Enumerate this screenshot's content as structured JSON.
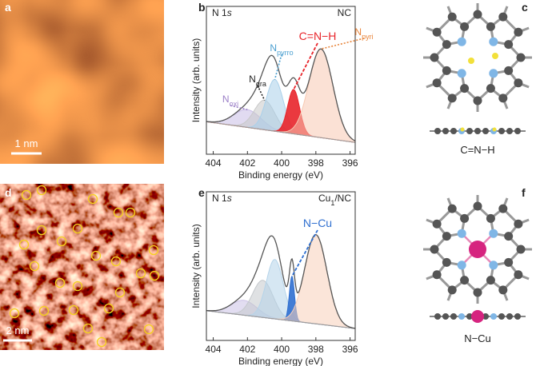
{
  "panels": {
    "a": {
      "letter": "a",
      "scale_bar": "1 nm"
    },
    "c": {
      "letter": "c",
      "caption": "C=N−H"
    },
    "d": {
      "letter": "d",
      "scale_bar": "2 nm"
    },
    "f": {
      "letter": "f",
      "caption": "N−Cu"
    }
  },
  "chart_data": [
    {
      "type": "area",
      "letter": "b",
      "core_level": "N 1",
      "core_level_italic": "s",
      "sample": "NC",
      "xlabel": "Binding energy (eV)",
      "ylabel": "Intensity (arb. units)",
      "xlim": [
        404.4,
        395.7
      ],
      "xticks": [
        404,
        402,
        400,
        398,
        396
      ],
      "ylim": [
        0,
        1
      ],
      "background": [
        0.22,
        0.08
      ],
      "series": [
        {
          "name": "N",
          "name_sub": "oxi",
          "color": "#c9bde6",
          "label_color": "#9b7fc7",
          "center": 402,
          "height": 0.12,
          "sigma": 0.8
        },
        {
          "name": "N",
          "name_sub": "gra",
          "color": "#c8c8c8",
          "label_color": "#222222",
          "center": 401,
          "height": 0.2,
          "sigma": 0.6
        },
        {
          "name": "N",
          "name_sub": "pyrro",
          "color": "#a9d0ea",
          "label_color": "#4a9fd0",
          "center": 400.4,
          "height": 0.35,
          "sigma": 0.5
        },
        {
          "name": "C=N−H",
          "color": "#e8242a",
          "label_color": "#e8242a",
          "center": 399.3,
          "height": 0.3,
          "sigma": 0.35
        },
        {
          "name": "N",
          "name_sub": "pyri",
          "color": "#f7c9b2",
          "label_color": "#e8843a",
          "center": 397.7,
          "height": 0.6,
          "sigma": 0.7
        }
      ]
    },
    {
      "type": "area",
      "letter": "e",
      "core_level": "N 1",
      "core_level_italic": "s",
      "sample": "Cu",
      "sample_sub": "1",
      "sample_rest": "/NC",
      "xlabel": "Binding energy (eV)",
      "ylabel": "Intensity (arb. units)",
      "xlim": [
        404.4,
        395.7
      ],
      "xticks": [
        404,
        402,
        400,
        398,
        396
      ],
      "ylim": [
        0,
        1
      ],
      "background": [
        0.2,
        0.08
      ],
      "series": [
        {
          "color": "#cbc1e6",
          "center": 402.2,
          "height": 0.1,
          "sigma": 0.75
        },
        {
          "color": "#c4c8cc",
          "center": 401.1,
          "height": 0.25,
          "sigma": 0.6
        },
        {
          "color": "#b5d4ea",
          "center": 400.4,
          "height": 0.4,
          "sigma": 0.5
        },
        {
          "name": "N−Cu",
          "color": "#2f6fd0",
          "label_color": "#2f6fd0",
          "center": 399.4,
          "height": 0.3,
          "sigma": 0.15
        },
        {
          "color": "#f7cfba",
          "center": 398,
          "height": 0.6,
          "sigma": 0.65
        }
      ]
    }
  ]
}
